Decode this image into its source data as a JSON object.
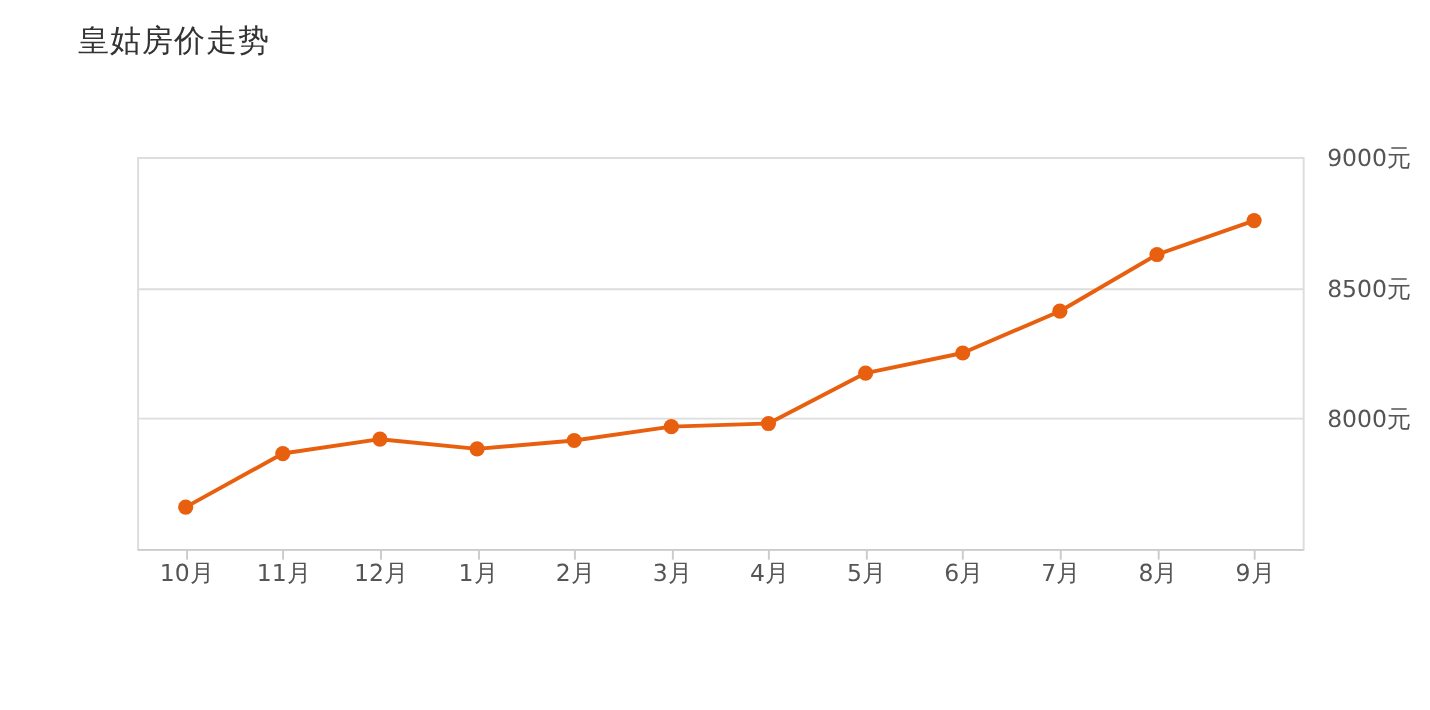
{
  "chart_data": {
    "type": "line",
    "title": "皇姑房价走势",
    "categories": [
      "10月",
      "11月",
      "12月",
      "1月",
      "2月",
      "3月",
      "4月",
      "5月",
      "6月",
      "7月",
      "8月",
      "9月"
    ],
    "series": [
      {
        "color": "#e8600f",
        "values": [
          7660,
          7865,
          7920,
          7883,
          7915,
          7968,
          7980,
          8173,
          8250,
          8410,
          8627,
          8757
        ]
      }
    ],
    "ylim": [
      7500,
      9000
    ],
    "yticks": [
      {
        "value": 8000,
        "label": "8000元"
      },
      {
        "value": 8500,
        "label": "8500元"
      },
      {
        "value": 9000,
        "label": "9000元"
      }
    ],
    "grid": "y",
    "marker": "circle",
    "line_style": "solid"
  }
}
